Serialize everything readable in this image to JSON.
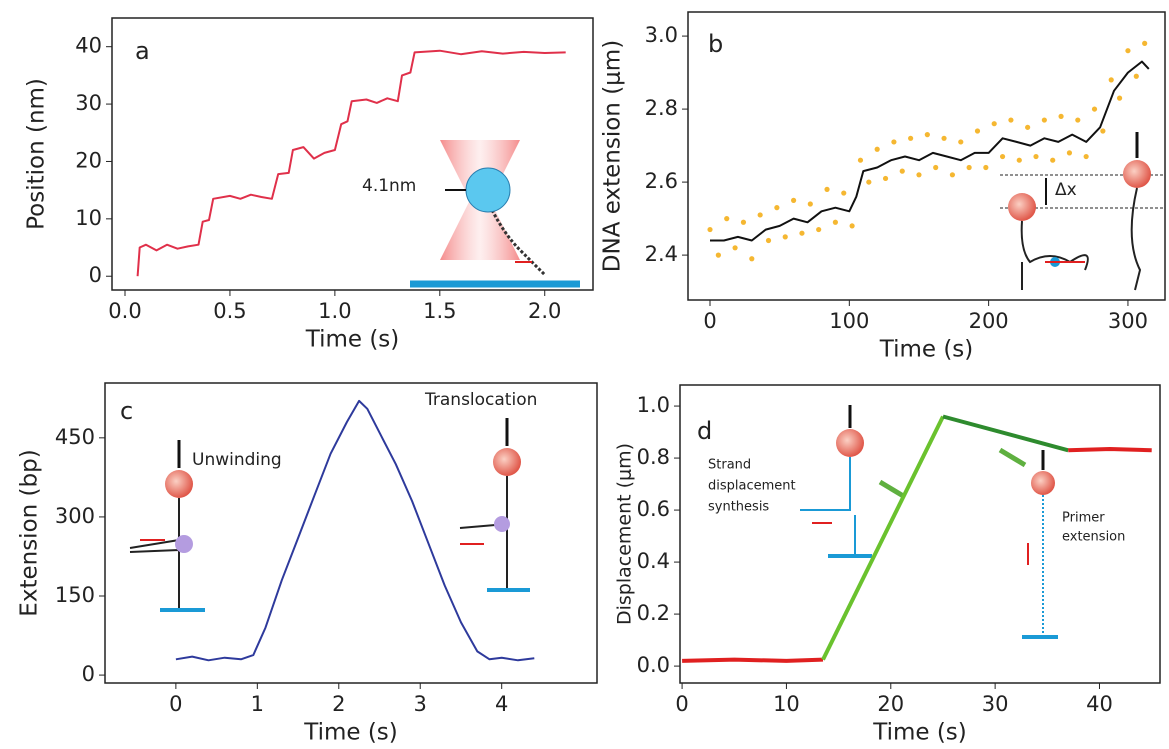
{
  "chart_data": [
    {
      "type": "line",
      "panel_label": "a",
      "xlabel": "Time (s)",
      "ylabel": "Position (nm)",
      "xlim": [
        -0.062,
        2.23
      ],
      "ylim": [
        -2.4,
        45
      ],
      "xticks": [
        {
          "value": 0,
          "label": "0.0"
        },
        {
          "value": 0.5,
          "label": "0.5"
        },
        {
          "value": 1,
          "label": "1.0"
        },
        {
          "value": 1.5,
          "label": "1.5"
        },
        {
          "value": 2,
          "label": "2.0"
        }
      ],
      "yticks": [
        0,
        10,
        20,
        30,
        40
      ],
      "annotations": [
        "4.1nm"
      ],
      "series": [
        {
          "color": "#e0304a",
          "x": [
            0.06,
            0.07,
            0.1,
            0.15,
            0.2,
            0.25,
            0.3,
            0.35,
            0.37,
            0.4,
            0.42,
            0.5,
            0.55,
            0.6,
            0.65,
            0.7,
            0.73,
            0.78,
            0.8,
            0.85,
            0.9,
            0.95,
            1.0,
            1.03,
            1.06,
            1.08,
            1.15,
            1.2,
            1.25,
            1.3,
            1.32,
            1.36,
            1.38,
            1.5,
            1.6,
            1.7,
            1.8,
            1.9,
            2.0,
            2.1
          ],
          "values": [
            0,
            5,
            5.5,
            4.5,
            5.5,
            4.8,
            5.2,
            5.5,
            9.5,
            9.8,
            13.5,
            14,
            13.5,
            14.2,
            13.8,
            13.5,
            17.8,
            18,
            22,
            22.5,
            20.5,
            21.5,
            22,
            26.5,
            27,
            30.5,
            30.8,
            30.2,
            31,
            30.5,
            35,
            35.5,
            39,
            39.3,
            38.7,
            39.2,
            38.8,
            39.1,
            38.9,
            39
          ]
        }
      ]
    },
    {
      "type": "line",
      "panel_label": "b",
      "xlabel": "Time (s)",
      "ylabel": "DNA extension (μm)",
      "xlim": [
        -15.8,
        326.6
      ],
      "ylim": [
        2.277,
        3.066
      ],
      "xticks": [
        0,
        100,
        200,
        300
      ],
      "yticks": [
        2.4,
        2.6,
        2.8,
        {
          "value": 3,
          "label": "3.0"
        }
      ],
      "annotations": [
        "Δx"
      ],
      "series": [
        {
          "color": "#f5b731",
          "kind": "scatter",
          "x": [
            0,
            6,
            12,
            18,
            24,
            30,
            36,
            42,
            48,
            54,
            60,
            66,
            72,
            78,
            84,
            90,
            96,
            102,
            108,
            114,
            120,
            126,
            132,
            138,
            144,
            150,
            156,
            162,
            168,
            174,
            180,
            186,
            192,
            198,
            204,
            210,
            216,
            222,
            228,
            234,
            240,
            246,
            252,
            258,
            264,
            270,
            276,
            282,
            288,
            294,
            300,
            306,
            312
          ],
          "values": [
            2.47,
            2.4,
            2.5,
            2.42,
            2.49,
            2.39,
            2.51,
            2.44,
            2.53,
            2.45,
            2.55,
            2.46,
            2.54,
            2.47,
            2.58,
            2.49,
            2.57,
            2.48,
            2.66,
            2.6,
            2.69,
            2.61,
            2.71,
            2.63,
            2.72,
            2.62,
            2.73,
            2.64,
            2.72,
            2.62,
            2.71,
            2.64,
            2.74,
            2.64,
            2.76,
            2.67,
            2.77,
            2.66,
            2.75,
            2.67,
            2.77,
            2.66,
            2.78,
            2.68,
            2.77,
            2.67,
            2.8,
            2.74,
            2.88,
            2.83,
            2.96,
            2.89,
            2.98
          ]
        },
        {
          "color": "#111111",
          "x": [
            0,
            10,
            20,
            30,
            40,
            50,
            60,
            70,
            80,
            90,
            100,
            105,
            110,
            120,
            130,
            140,
            150,
            160,
            170,
            180,
            190,
            200,
            210,
            220,
            230,
            240,
            250,
            260,
            270,
            280,
            290,
            300,
            310,
            315
          ],
          "values": [
            2.44,
            2.44,
            2.45,
            2.44,
            2.47,
            2.48,
            2.5,
            2.49,
            2.52,
            2.53,
            2.52,
            2.56,
            2.63,
            2.64,
            2.66,
            2.67,
            2.66,
            2.68,
            2.67,
            2.66,
            2.68,
            2.68,
            2.72,
            2.71,
            2.7,
            2.72,
            2.71,
            2.73,
            2.71,
            2.75,
            2.85,
            2.9,
            2.93,
            2.91
          ]
        }
      ]
    },
    {
      "type": "line",
      "panel_label": "c",
      "xlabel": "Time (s)",
      "ylabel": "Extension (bp)",
      "xlim": [
        -0.87,
        5.17
      ],
      "ylim": [
        -15,
        554
      ],
      "xticks": [
        0,
        1,
        2,
        3,
        4
      ],
      "yticks": [
        0,
        150,
        300,
        450
      ],
      "annotations": [
        "Unwinding",
        "Translocation"
      ],
      "series": [
        {
          "color": "#2e3a9c",
          "x": [
            0,
            0.2,
            0.4,
            0.6,
            0.8,
            0.95,
            1.1,
            1.3,
            1.5,
            1.7,
            1.9,
            2.1,
            2.25,
            2.35,
            2.5,
            2.7,
            2.9,
            3.1,
            3.3,
            3.5,
            3.7,
            3.85,
            4.0,
            4.2,
            4.4
          ],
          "values": [
            30,
            35,
            28,
            33,
            30,
            38,
            90,
            180,
            260,
            340,
            420,
            480,
            520,
            505,
            460,
            400,
            330,
            250,
            170,
            100,
            45,
            30,
            33,
            28,
            32
          ]
        }
      ]
    },
    {
      "type": "line",
      "panel_label": "d",
      "xlabel": "Time (s)",
      "ylabel": "Displacement (μm)",
      "xlim": [
        -0.2,
        45.8
      ],
      "ylim": [
        -0.065,
        1.081
      ],
      "xticks": [
        0,
        10,
        20,
        30,
        40
      ],
      "yticks": [
        {
          "value": 0,
          "label": "0.0"
        },
        0.2,
        0.4,
        0.6,
        0.8,
        {
          "value": 1,
          "label": "1.0"
        }
      ],
      "annotations": [
        "Strand",
        "displacement",
        "synthesis",
        "Primer",
        "extension"
      ],
      "series": [
        {
          "color": "#e02020",
          "x": [
            0,
            5,
            10,
            13.5
          ],
          "values": [
            0.02,
            0.025,
            0.02,
            0.025
          ]
        },
        {
          "color": "#6ac22e",
          "x": [
            13.5,
            25
          ],
          "values": [
            0.025,
            0.96
          ]
        },
        {
          "color": "#2e8b2e",
          "x": [
            25,
            37
          ],
          "values": [
            0.96,
            0.83
          ]
        },
        {
          "color": "#e02020",
          "x": [
            37,
            41,
            45
          ],
          "values": [
            0.83,
            0.835,
            0.83
          ]
        }
      ]
    }
  ]
}
